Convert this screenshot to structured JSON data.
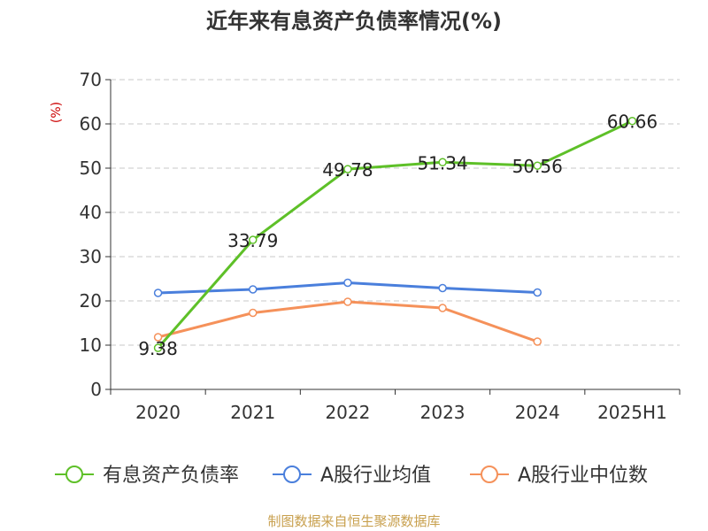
{
  "chart_data": {
    "type": "line",
    "title": "近年来有息资产负债率情况(%)",
    "ylabel": "(%)",
    "xlabel": "",
    "ylim": [
      0,
      70
    ],
    "yticks": [
      0,
      10,
      20,
      30,
      40,
      50,
      60,
      70
    ],
    "grid": true,
    "legend_position": "bottom",
    "categories": [
      "2020",
      "2021",
      "2022",
      "2023",
      "2024",
      "2025H1"
    ],
    "series": [
      {
        "name": "有息资产负债率",
        "color": "#5ec028",
        "values": [
          9.38,
          33.79,
          49.78,
          51.34,
          50.56,
          60.66
        ],
        "labels": [
          "9.38",
          "33.79",
          "49.78",
          "51.34",
          "50.56",
          "60.66"
        ],
        "show_labels": true
      },
      {
        "name": "A股行业均值",
        "color": "#4a7fdc",
        "values": [
          21.8,
          22.6,
          24.1,
          22.9,
          21.9,
          null
        ],
        "show_labels": false
      },
      {
        "name": "A股行业中位数",
        "color": "#f5915a",
        "values": [
          11.8,
          17.3,
          19.8,
          18.4,
          10.8,
          null
        ],
        "show_labels": false
      }
    ]
  },
  "source_text": "制图数据来自恒生聚源数据库"
}
